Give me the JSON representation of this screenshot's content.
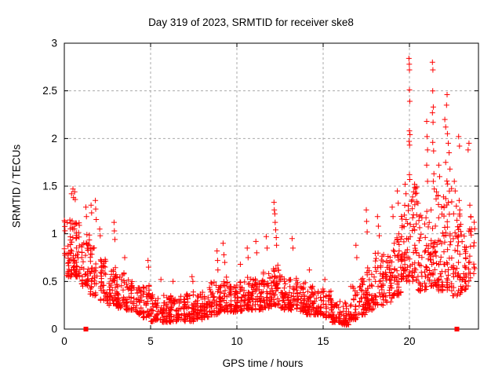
{
  "chart_data": {
    "type": "scatter",
    "title": "Day 319 of 2023, SRMTID for receiver ske8",
    "xlabel": "GPS time / hours",
    "ylabel": "SRMTID / TECUs",
    "xlim": [
      0,
      24
    ],
    "ylim": [
      0,
      3
    ],
    "xticks": [
      0,
      5,
      10,
      15,
      20
    ],
    "x_tick_labels": [
      "0",
      "5",
      "10",
      "15",
      "20"
    ],
    "yticks": [
      0,
      0.5,
      1,
      1.5,
      2,
      2.5,
      3
    ],
    "y_tick_labels": [
      "0",
      "0.5",
      "1",
      "1.5",
      "2",
      "2.5",
      "3"
    ],
    "grid": {
      "shown": true,
      "style": "dashed"
    },
    "legend": "none",
    "colors": {
      "marker": "#ff0000",
      "grid": "#a9a9a9",
      "axis": "#000000",
      "background": "#ffffff"
    },
    "marker": "plus",
    "marker_size": 7,
    "series": [
      {
        "name": "srmtid",
        "marker": "plus",
        "color": "#ff0000",
        "band_bins": [
          [
            0.0,
            0.5,
            46,
            0.55,
            1.15
          ],
          [
            0.5,
            1.0,
            50,
            0.55,
            1.12
          ],
          [
            1.0,
            1.5,
            42,
            0.45,
            1.05
          ],
          [
            1.5,
            2.0,
            40,
            0.35,
            0.92
          ],
          [
            2.0,
            2.5,
            40,
            0.3,
            0.75
          ],
          [
            2.5,
            3.0,
            40,
            0.25,
            0.65
          ],
          [
            3.0,
            3.5,
            40,
            0.22,
            0.6
          ],
          [
            3.5,
            4.0,
            40,
            0.2,
            0.55
          ],
          [
            4.0,
            4.5,
            40,
            0.15,
            0.5
          ],
          [
            4.5,
            5.0,
            42,
            0.12,
            0.46
          ],
          [
            5.0,
            5.5,
            40,
            0.08,
            0.38
          ],
          [
            5.5,
            6.0,
            42,
            0.07,
            0.4
          ],
          [
            6.0,
            6.5,
            40,
            0.07,
            0.35
          ],
          [
            6.5,
            7.0,
            40,
            0.08,
            0.35
          ],
          [
            7.0,
            7.5,
            42,
            0.08,
            0.4
          ],
          [
            7.5,
            8.0,
            40,
            0.1,
            0.4
          ],
          [
            8.0,
            8.5,
            42,
            0.12,
            0.45
          ],
          [
            8.5,
            9.0,
            44,
            0.15,
            0.5
          ],
          [
            9.0,
            9.5,
            44,
            0.18,
            0.55
          ],
          [
            9.5,
            10.0,
            42,
            0.18,
            0.5
          ],
          [
            10.0,
            10.5,
            42,
            0.18,
            0.52
          ],
          [
            10.5,
            11.0,
            42,
            0.2,
            0.55
          ],
          [
            11.0,
            11.5,
            44,
            0.2,
            0.55
          ],
          [
            11.5,
            12.0,
            44,
            0.22,
            0.6
          ],
          [
            12.0,
            12.5,
            46,
            0.25,
            0.7
          ],
          [
            12.5,
            13.0,
            42,
            0.2,
            0.55
          ],
          [
            13.0,
            13.5,
            42,
            0.2,
            0.55
          ],
          [
            13.5,
            14.0,
            40,
            0.18,
            0.5
          ],
          [
            14.0,
            14.5,
            40,
            0.15,
            0.45
          ],
          [
            14.5,
            15.0,
            40,
            0.15,
            0.42
          ],
          [
            15.0,
            15.5,
            40,
            0.12,
            0.4
          ],
          [
            15.5,
            16.0,
            40,
            0.07,
            0.3
          ],
          [
            16.0,
            16.5,
            38,
            0.04,
            0.28
          ],
          [
            16.5,
            17.0,
            40,
            0.1,
            0.45
          ],
          [
            17.0,
            17.5,
            42,
            0.15,
            0.55
          ],
          [
            17.5,
            18.0,
            42,
            0.2,
            0.65
          ],
          [
            18.0,
            18.5,
            44,
            0.25,
            0.8
          ],
          [
            18.5,
            19.0,
            44,
            0.28,
            0.8
          ],
          [
            19.0,
            19.5,
            46,
            0.35,
            1.0
          ],
          [
            19.5,
            20.0,
            48,
            0.5,
            1.3
          ],
          [
            20.0,
            20.5,
            46,
            0.5,
            1.5
          ],
          [
            20.5,
            21.0,
            44,
            0.4,
            1.2
          ],
          [
            21.0,
            21.5,
            44,
            0.45,
            1.3
          ],
          [
            21.5,
            22.0,
            46,
            0.4,
            1.5
          ],
          [
            22.0,
            22.5,
            46,
            0.4,
            1.6
          ],
          [
            22.5,
            23.0,
            44,
            0.35,
            1.3
          ],
          [
            23.0,
            23.4,
            30,
            0.4,
            1.0
          ],
          [
            23.4,
            23.8,
            22,
            0.5,
            1.2
          ]
        ],
        "outlier_points": [
          [
            0.42,
            1.42
          ],
          [
            0.5,
            1.47
          ],
          [
            0.53,
            1.38
          ],
          [
            0.6,
            1.44
          ],
          [
            0.63,
            1.36
          ],
          [
            1.25,
            1.28
          ],
          [
            1.28,
            1.18
          ],
          [
            1.55,
            1.3
          ],
          [
            1.58,
            1.22
          ],
          [
            1.8,
            1.35
          ],
          [
            1.82,
            1.26
          ],
          [
            1.85,
            1.15
          ],
          [
            2.05,
            1.05
          ],
          [
            2.08,
            0.98
          ],
          [
            2.88,
            1.12
          ],
          [
            2.9,
            1.03
          ],
          [
            2.93,
            0.94
          ],
          [
            3.5,
            0.75
          ],
          [
            4.85,
            0.72
          ],
          [
            4.88,
            0.65
          ],
          [
            5.6,
            0.52
          ],
          [
            6.3,
            0.5
          ],
          [
            7.4,
            0.55
          ],
          [
            7.45,
            0.5
          ],
          [
            8.85,
            0.82
          ],
          [
            8.88,
            0.72
          ],
          [
            8.9,
            0.62
          ],
          [
            9.2,
            0.9
          ],
          [
            9.25,
            0.78
          ],
          [
            9.3,
            0.7
          ],
          [
            10.2,
            0.68
          ],
          [
            10.6,
            0.85
          ],
          [
            10.65,
            0.75
          ],
          [
            11.1,
            0.92
          ],
          [
            11.15,
            0.8
          ],
          [
            11.7,
            0.97
          ],
          [
            11.75,
            0.85
          ],
          [
            12.15,
            1.33
          ],
          [
            12.17,
            1.25
          ],
          [
            12.2,
            1.21
          ],
          [
            12.22,
            1.12
          ],
          [
            12.25,
            1.04
          ],
          [
            12.28,
            0.96
          ],
          [
            12.3,
            0.88
          ],
          [
            13.2,
            0.95
          ],
          [
            13.25,
            0.85
          ],
          [
            14.2,
            0.62
          ],
          [
            15.1,
            0.52
          ],
          [
            16.9,
            0.88
          ],
          [
            16.95,
            0.75
          ],
          [
            17.5,
            1.25
          ],
          [
            17.52,
            1.13
          ],
          [
            17.55,
            1.02
          ],
          [
            18.15,
            1.18
          ],
          [
            18.2,
            1.08
          ],
          [
            18.25,
            0.98
          ],
          [
            19.0,
            1.28
          ],
          [
            19.05,
            1.18
          ],
          [
            19.3,
            1.45
          ],
          [
            19.35,
            1.32
          ],
          [
            19.75,
            1.52
          ],
          [
            19.8,
            1.42
          ],
          [
            19.97,
            2.84
          ],
          [
            19.99,
            2.78
          ],
          [
            20.0,
            2.72
          ],
          [
            20.0,
            2.51
          ],
          [
            20.02,
            2.39
          ],
          [
            20.0,
            2.08
          ],
          [
            20.03,
            2.04
          ],
          [
            19.98,
            1.97
          ],
          [
            20.01,
            1.93
          ],
          [
            20.0,
            1.62
          ],
          [
            20.02,
            1.57
          ],
          [
            20.3,
            1.52
          ],
          [
            20.35,
            1.42
          ],
          [
            21.0,
            2.18
          ],
          [
            21.02,
            2.02
          ],
          [
            21.05,
            1.88
          ],
          [
            21.0,
            1.72
          ],
          [
            21.05,
            1.55
          ],
          [
            21.33,
            2.8
          ],
          [
            21.36,
            2.72
          ],
          [
            21.35,
            2.5
          ],
          [
            21.38,
            2.33
          ],
          [
            21.33,
            2.27
          ],
          [
            21.37,
            2.17
          ],
          [
            21.35,
            1.96
          ],
          [
            21.4,
            1.87
          ],
          [
            21.42,
            1.63
          ],
          [
            21.38,
            1.55
          ],
          [
            21.44,
            1.47
          ],
          [
            21.7,
            1.72
          ],
          [
            21.75,
            1.6
          ],
          [
            22.05,
            2.2
          ],
          [
            22.1,
            2.12
          ],
          [
            22.15,
            2.35
          ],
          [
            22.18,
            2.46
          ],
          [
            22.2,
            2.05
          ],
          [
            22.25,
            1.95
          ],
          [
            22.3,
            1.85
          ],
          [
            22.1,
            1.75
          ],
          [
            22.35,
            1.68
          ],
          [
            22.6,
            1.55
          ],
          [
            22.65,
            1.45
          ],
          [
            22.85,
            2.02
          ],
          [
            22.9,
            1.92
          ],
          [
            22.88,
            1.35
          ],
          [
            22.92,
            1.25
          ],
          [
            23.4,
            1.88
          ],
          [
            23.45,
            1.95
          ],
          [
            23.5,
            1.3
          ],
          [
            23.55,
            1.18
          ],
          [
            23.6,
            1.05
          ]
        ]
      },
      {
        "name": "zero-flags",
        "marker": "filled-square",
        "color": "#ff0000",
        "points": [
          [
            1.25,
            0
          ],
          [
            22.75,
            0
          ]
        ]
      }
    ]
  }
}
